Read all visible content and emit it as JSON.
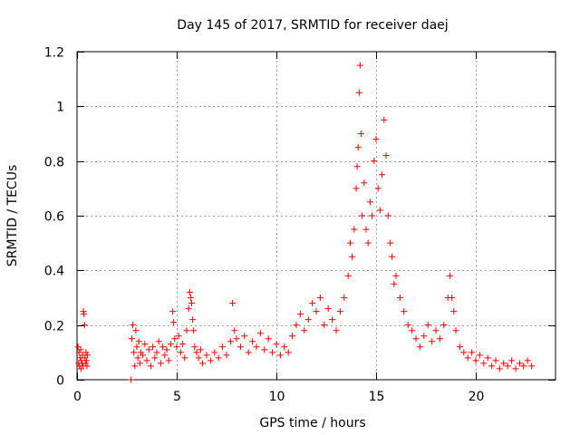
{
  "chart_data": {
    "type": "scatter",
    "title": "Day 145 of 2017, SRMTID for receiver daej",
    "xlabel": "GPS time / hours",
    "ylabel": "SRMTID / TECUs",
    "xlim": [
      0,
      24
    ],
    "ylim": [
      0,
      1.2
    ],
    "x_ticks": [
      0,
      5,
      10,
      15,
      20
    ],
    "y_ticks": [
      0,
      0.2,
      0.4,
      0.6,
      0.8,
      1,
      1.2
    ],
    "x_tick_labels": [
      "0",
      "5",
      "10",
      "15",
      "20"
    ],
    "y_tick_labels": [
      "0",
      "0.2",
      "0.4",
      "0.6",
      "0.8",
      "1",
      "1.2"
    ],
    "grid": true,
    "marker": "+",
    "colors": {
      "series": "#ff0000",
      "grid": "#a0a0a0",
      "axis": "#000000"
    },
    "series": [
      {
        "name": "SRMTID",
        "points": [
          [
            0.05,
            0.12
          ],
          [
            0.08,
            0.06
          ],
          [
            0.1,
            0.1
          ],
          [
            0.12,
            0.05
          ],
          [
            0.15,
            0.08
          ],
          [
            0.18,
            0.11
          ],
          [
            0.2,
            0.04
          ],
          [
            0.22,
            0.07
          ],
          [
            0.25,
            0.06
          ],
          [
            0.28,
            0.09
          ],
          [
            0.3,
            0.05
          ],
          [
            0.32,
            0.25
          ],
          [
            0.35,
            0.24
          ],
          [
            0.38,
            0.2
          ],
          [
            0.4,
            0.08
          ],
          [
            0.42,
            0.06
          ],
          [
            0.45,
            0.1
          ],
          [
            0.48,
            0.07
          ],
          [
            0.5,
            0.05
          ],
          [
            0.52,
            0.09
          ],
          [
            2.7,
            0.0
          ],
          [
            2.75,
            0.15
          ],
          [
            2.8,
            0.2
          ],
          [
            2.85,
            0.1
          ],
          [
            2.9,
            0.05
          ],
          [
            2.95,
            0.18
          ],
          [
            3.0,
            0.12
          ],
          [
            3.05,
            0.08
          ],
          [
            3.1,
            0.14
          ],
          [
            3.15,
            0.06
          ],
          [
            3.2,
            0.1
          ],
          [
            3.3,
            0.09
          ],
          [
            3.4,
            0.13
          ],
          [
            3.5,
            0.07
          ],
          [
            3.6,
            0.11
          ],
          [
            3.7,
            0.05
          ],
          [
            3.8,
            0.12
          ],
          [
            3.9,
            0.08
          ],
          [
            4.0,
            0.1
          ],
          [
            4.1,
            0.14
          ],
          [
            4.2,
            0.06
          ],
          [
            4.3,
            0.12
          ],
          [
            4.4,
            0.09
          ],
          [
            4.5,
            0.11
          ],
          [
            4.6,
            0.07
          ],
          [
            4.7,
            0.13
          ],
          [
            4.8,
            0.25
          ],
          [
            4.85,
            0.21
          ],
          [
            4.9,
            0.15
          ],
          [
            5.0,
            0.12
          ],
          [
            5.1,
            0.16
          ],
          [
            5.2,
            0.1
          ],
          [
            5.3,
            0.13
          ],
          [
            5.4,
            0.08
          ],
          [
            5.5,
            0.18
          ],
          [
            5.6,
            0.26
          ],
          [
            5.65,
            0.32
          ],
          [
            5.7,
            0.3
          ],
          [
            5.75,
            0.28
          ],
          [
            5.8,
            0.22
          ],
          [
            5.85,
            0.18
          ],
          [
            5.9,
            0.12
          ],
          [
            6.0,
            0.1
          ],
          [
            6.1,
            0.08
          ],
          [
            6.2,
            0.11
          ],
          [
            6.3,
            0.06
          ],
          [
            6.5,
            0.09
          ],
          [
            6.7,
            0.07
          ],
          [
            6.9,
            0.1
          ],
          [
            7.1,
            0.08
          ],
          [
            7.3,
            0.12
          ],
          [
            7.5,
            0.09
          ],
          [
            7.7,
            0.14
          ],
          [
            7.8,
            0.28
          ],
          [
            7.9,
            0.18
          ],
          [
            8.0,
            0.15
          ],
          [
            8.2,
            0.12
          ],
          [
            8.4,
            0.16
          ],
          [
            8.6,
            0.1
          ],
          [
            8.8,
            0.14
          ],
          [
            9.0,
            0.12
          ],
          [
            9.2,
            0.17
          ],
          [
            9.4,
            0.11
          ],
          [
            9.6,
            0.15
          ],
          [
            9.8,
            0.1
          ],
          [
            10.0,
            0.13
          ],
          [
            10.2,
            0.09
          ],
          [
            10.4,
            0.12
          ],
          [
            10.6,
            0.1
          ],
          [
            10.8,
            0.16
          ],
          [
            11.0,
            0.2
          ],
          [
            11.2,
            0.24
          ],
          [
            11.4,
            0.18
          ],
          [
            11.6,
            0.22
          ],
          [
            11.8,
            0.28
          ],
          [
            12.0,
            0.25
          ],
          [
            12.2,
            0.3
          ],
          [
            12.4,
            0.2
          ],
          [
            12.6,
            0.26
          ],
          [
            12.8,
            0.22
          ],
          [
            13.0,
            0.18
          ],
          [
            13.2,
            0.25
          ],
          [
            13.4,
            0.3
          ],
          [
            13.6,
            0.38
          ],
          [
            13.7,
            0.5
          ],
          [
            13.8,
            0.45
          ],
          [
            13.9,
            0.55
          ],
          [
            14.0,
            0.7
          ],
          [
            14.05,
            0.78
          ],
          [
            14.1,
            0.85
          ],
          [
            14.15,
            1.05
          ],
          [
            14.2,
            1.15
          ],
          [
            14.25,
            0.9
          ],
          [
            14.3,
            0.6
          ],
          [
            14.4,
            0.72
          ],
          [
            14.5,
            0.55
          ],
          [
            14.6,
            0.5
          ],
          [
            14.7,
            0.65
          ],
          [
            14.8,
            0.6
          ],
          [
            14.9,
            0.8
          ],
          [
            15.0,
            0.88
          ],
          [
            15.1,
            0.7
          ],
          [
            15.2,
            0.62
          ],
          [
            15.3,
            0.75
          ],
          [
            15.4,
            0.95
          ],
          [
            15.5,
            0.82
          ],
          [
            15.6,
            0.6
          ],
          [
            15.7,
            0.5
          ],
          [
            15.8,
            0.45
          ],
          [
            15.9,
            0.35
          ],
          [
            16.0,
            0.38
          ],
          [
            16.2,
            0.3
          ],
          [
            16.4,
            0.25
          ],
          [
            16.6,
            0.2
          ],
          [
            16.8,
            0.18
          ],
          [
            17.0,
            0.15
          ],
          [
            17.2,
            0.12
          ],
          [
            17.4,
            0.16
          ],
          [
            17.6,
            0.2
          ],
          [
            17.8,
            0.14
          ],
          [
            18.0,
            0.18
          ],
          [
            18.2,
            0.15
          ],
          [
            18.4,
            0.2
          ],
          [
            18.6,
            0.3
          ],
          [
            18.7,
            0.38
          ],
          [
            18.8,
            0.3
          ],
          [
            18.9,
            0.25
          ],
          [
            19.0,
            0.18
          ],
          [
            19.2,
            0.12
          ],
          [
            19.4,
            0.1
          ],
          [
            19.6,
            0.08
          ],
          [
            19.8,
            0.1
          ],
          [
            20.0,
            0.07
          ],
          [
            20.2,
            0.09
          ],
          [
            20.4,
            0.06
          ],
          [
            20.6,
            0.08
          ],
          [
            20.8,
            0.05
          ],
          [
            21.0,
            0.07
          ],
          [
            21.2,
            0.04
          ],
          [
            21.4,
            0.06
          ],
          [
            21.6,
            0.05
          ],
          [
            21.8,
            0.07
          ],
          [
            22.0,
            0.04
          ],
          [
            22.2,
            0.06
          ],
          [
            22.4,
            0.05
          ],
          [
            22.6,
            0.07
          ],
          [
            22.8,
            0.05
          ]
        ]
      }
    ]
  }
}
